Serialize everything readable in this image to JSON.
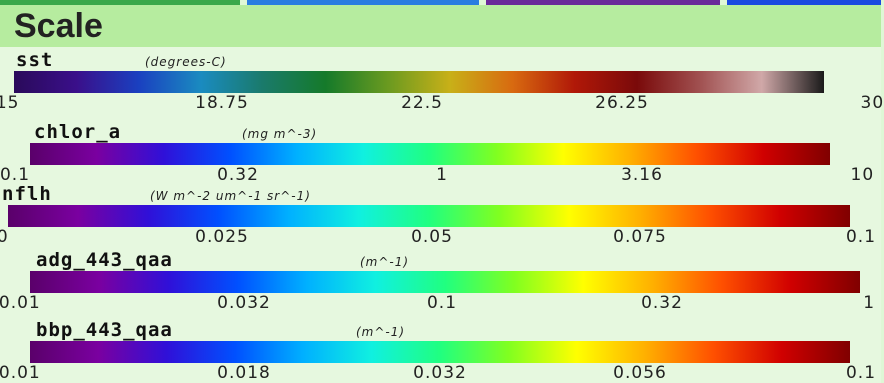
{
  "panel": {
    "title": "Scale"
  },
  "scales": [
    {
      "id": "sst",
      "name": "sst",
      "units": "(degrees-C)",
      "ticks": [
        "15",
        "18.75",
        "22.5",
        "26.25",
        "30"
      ],
      "gradient": [
        "#2a0a5a",
        "#3a0f8a",
        "#1a40c0",
        "#1a8bc0",
        "#1a7a6a",
        "#157a2a",
        "#6a9a20",
        "#c8b018",
        "#d86a10",
        "#b01808",
        "#7a0a0a",
        "#a05050",
        "#d0a8a8",
        "#1a1a1a"
      ]
    },
    {
      "id": "chlor_a",
      "name": "chlor_a",
      "units": "(mg m^-3)",
      "ticks": [
        "0.1",
        "0.32",
        "1",
        "3.16",
        "10"
      ],
      "gradient": [
        "#5a006a",
        "#7a00a0",
        "#3010d8",
        "#0050ff",
        "#00b0ff",
        "#10f0e0",
        "#20ff80",
        "#80ff20",
        "#ffff00",
        "#ffb000",
        "#ff5000",
        "#d00000",
        "#800000"
      ]
    },
    {
      "id": "nflh",
      "name": "nflh",
      "units": "(W m^-2 um^-1 sr^-1)",
      "ticks": [
        "0",
        "0.025",
        "0.05",
        "0.075",
        "0.1"
      ],
      "gradient": [
        "#5a006a",
        "#7a00a0",
        "#3010d8",
        "#0050ff",
        "#00b0ff",
        "#10f0e0",
        "#20ff80",
        "#80ff20",
        "#ffff00",
        "#ffb000",
        "#ff5000",
        "#d00000",
        "#800000"
      ]
    },
    {
      "id": "adg_443_qaa",
      "name": "adg_443_qaa",
      "units": "(m^-1)",
      "ticks": [
        "0.01",
        "0.032",
        "0.1",
        "0.32",
        "1"
      ],
      "gradient": [
        "#5a006a",
        "#7a00a0",
        "#3010d8",
        "#0050ff",
        "#00b0ff",
        "#10f0e0",
        "#20ff80",
        "#80ff20",
        "#ffff00",
        "#ffb000",
        "#ff5000",
        "#d00000",
        "#800000"
      ]
    },
    {
      "id": "bbp_443_qaa",
      "name": "bbp_443_qaa",
      "units": "(m^-1)",
      "ticks": [
        "0.01",
        "0.018",
        "0.032",
        "0.056",
        "0.1"
      ],
      "gradient": [
        "#5a006a",
        "#7a00a0",
        "#3010d8",
        "#0050ff",
        "#00b0ff",
        "#10f0e0",
        "#20ff80",
        "#80ff20",
        "#ffff00",
        "#ffb000",
        "#ff5000",
        "#d00000",
        "#800000"
      ]
    }
  ],
  "tabstrip": {
    "colors": [
      "#3aa84a",
      "#2a7de0",
      "#6a2a9a",
      "#1a4ae0"
    ]
  }
}
